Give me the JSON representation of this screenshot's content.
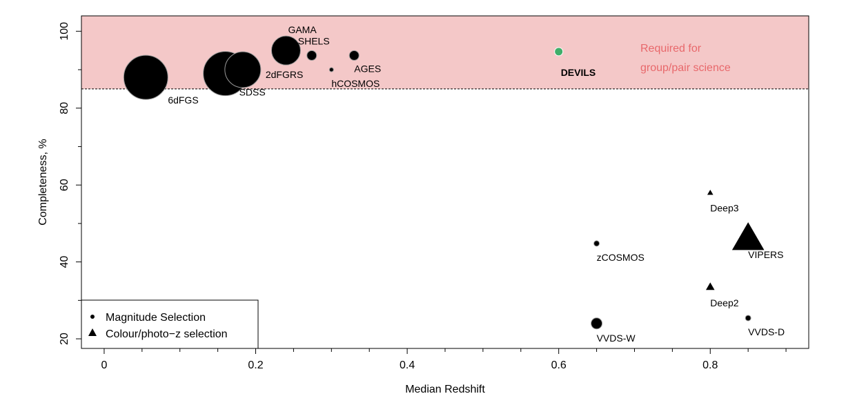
{
  "chart_data": {
    "type": "scatter",
    "xlabel": "Median Redshift",
    "ylabel": "Completeness, %",
    "xlim": [
      -0.03,
      0.93
    ],
    "ylim": [
      17.5,
      104
    ],
    "xticks": [
      0,
      0.2,
      0.4,
      0.6,
      0.8
    ],
    "xtick_labels": [
      "0",
      "0.2",
      "0.4",
      "0.6",
      "0.8"
    ],
    "yticks": [
      20,
      40,
      60,
      80,
      100
    ],
    "ytick_labels": [
      "20",
      "40",
      "60",
      "80",
      "100"
    ],
    "region": {
      "y_from": 85,
      "y_to": 104,
      "color": "#f4c8c8",
      "label_lines": [
        "Required for",
        "group/pair science"
      ],
      "label_color": "#e8686b"
    },
    "threshold_line_y": 85,
    "highlight_color": "#3fae6a",
    "points": [
      {
        "name": "6dFGS",
        "x": 0.055,
        "y": 88,
        "marker": "circle",
        "size": 32
      },
      {
        "name": "SDSS",
        "x": 0.16,
        "y": 89,
        "marker": "circle",
        "size": 32
      },
      {
        "name": "2dFGRS",
        "x": 0.183,
        "y": 90,
        "marker": "circle",
        "size": 26
      },
      {
        "name": "GAMA",
        "x": 0.24,
        "y": 95,
        "marker": "circle",
        "size": 21
      },
      {
        "name": "SHELS",
        "x": 0.274,
        "y": 93.7,
        "marker": "circle",
        "size": 7
      },
      {
        "name": "AGES",
        "x": 0.33,
        "y": 93.7,
        "marker": "circle",
        "size": 7
      },
      {
        "name": "hCOSMOS",
        "x": 0.3,
        "y": 90,
        "marker": "circle",
        "size": 3
      },
      {
        "name": "DEVILS",
        "x": 0.6,
        "y": 94.7,
        "marker": "circle",
        "size": 6,
        "highlight": true
      },
      {
        "name": "zCOSMOS",
        "x": 0.65,
        "y": 44.8,
        "marker": "circle",
        "size": 4
      },
      {
        "name": "VVDS-W",
        "x": 0.65,
        "y": 24,
        "marker": "circle",
        "size": 8
      },
      {
        "name": "VVDS-D",
        "x": 0.85,
        "y": 25.4,
        "marker": "circle",
        "size": 4
      },
      {
        "name": "Deep3",
        "x": 0.8,
        "y": 58,
        "marker": "triangle",
        "size": 5
      },
      {
        "name": "VIPERS",
        "x": 0.85,
        "y": 46,
        "marker": "triangle",
        "size": 24
      },
      {
        "name": "Deep2",
        "x": 0.8,
        "y": 33.5,
        "marker": "triangle",
        "size": 7
      }
    ],
    "legend": {
      "placement": "bottom-left",
      "entries": [
        {
          "marker": "circle",
          "label": "Magnitude Selection"
        },
        {
          "marker": "triangle",
          "label": "Colour/photo−z selection"
        }
      ]
    }
  }
}
